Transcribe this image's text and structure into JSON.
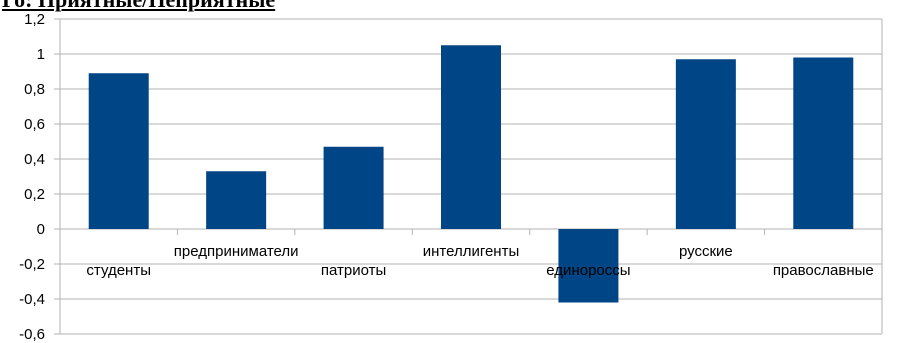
{
  "chart_data": {
    "type": "bar",
    "title": "Го: Приятные/Неприятные",
    "categories": [
      "студенты",
      "предприниматели",
      "патриоты",
      "интеллигенты",
      "единороссы",
      "русские",
      "православные"
    ],
    "values": [
      0.89,
      0.33,
      0.47,
      1.05,
      -0.42,
      0.97,
      0.98
    ],
    "ylim": [
      -0.6,
      1.2
    ],
    "y_ticks": [
      "-0,6",
      "-0,4",
      "-0,2",
      "0",
      "0,2",
      "0,4",
      "0,6",
      "0,8",
      "1",
      "1,2"
    ],
    "xlabel": "",
    "ylabel": "",
    "grid": true,
    "legend": "none",
    "bar_color": "#004586"
  }
}
